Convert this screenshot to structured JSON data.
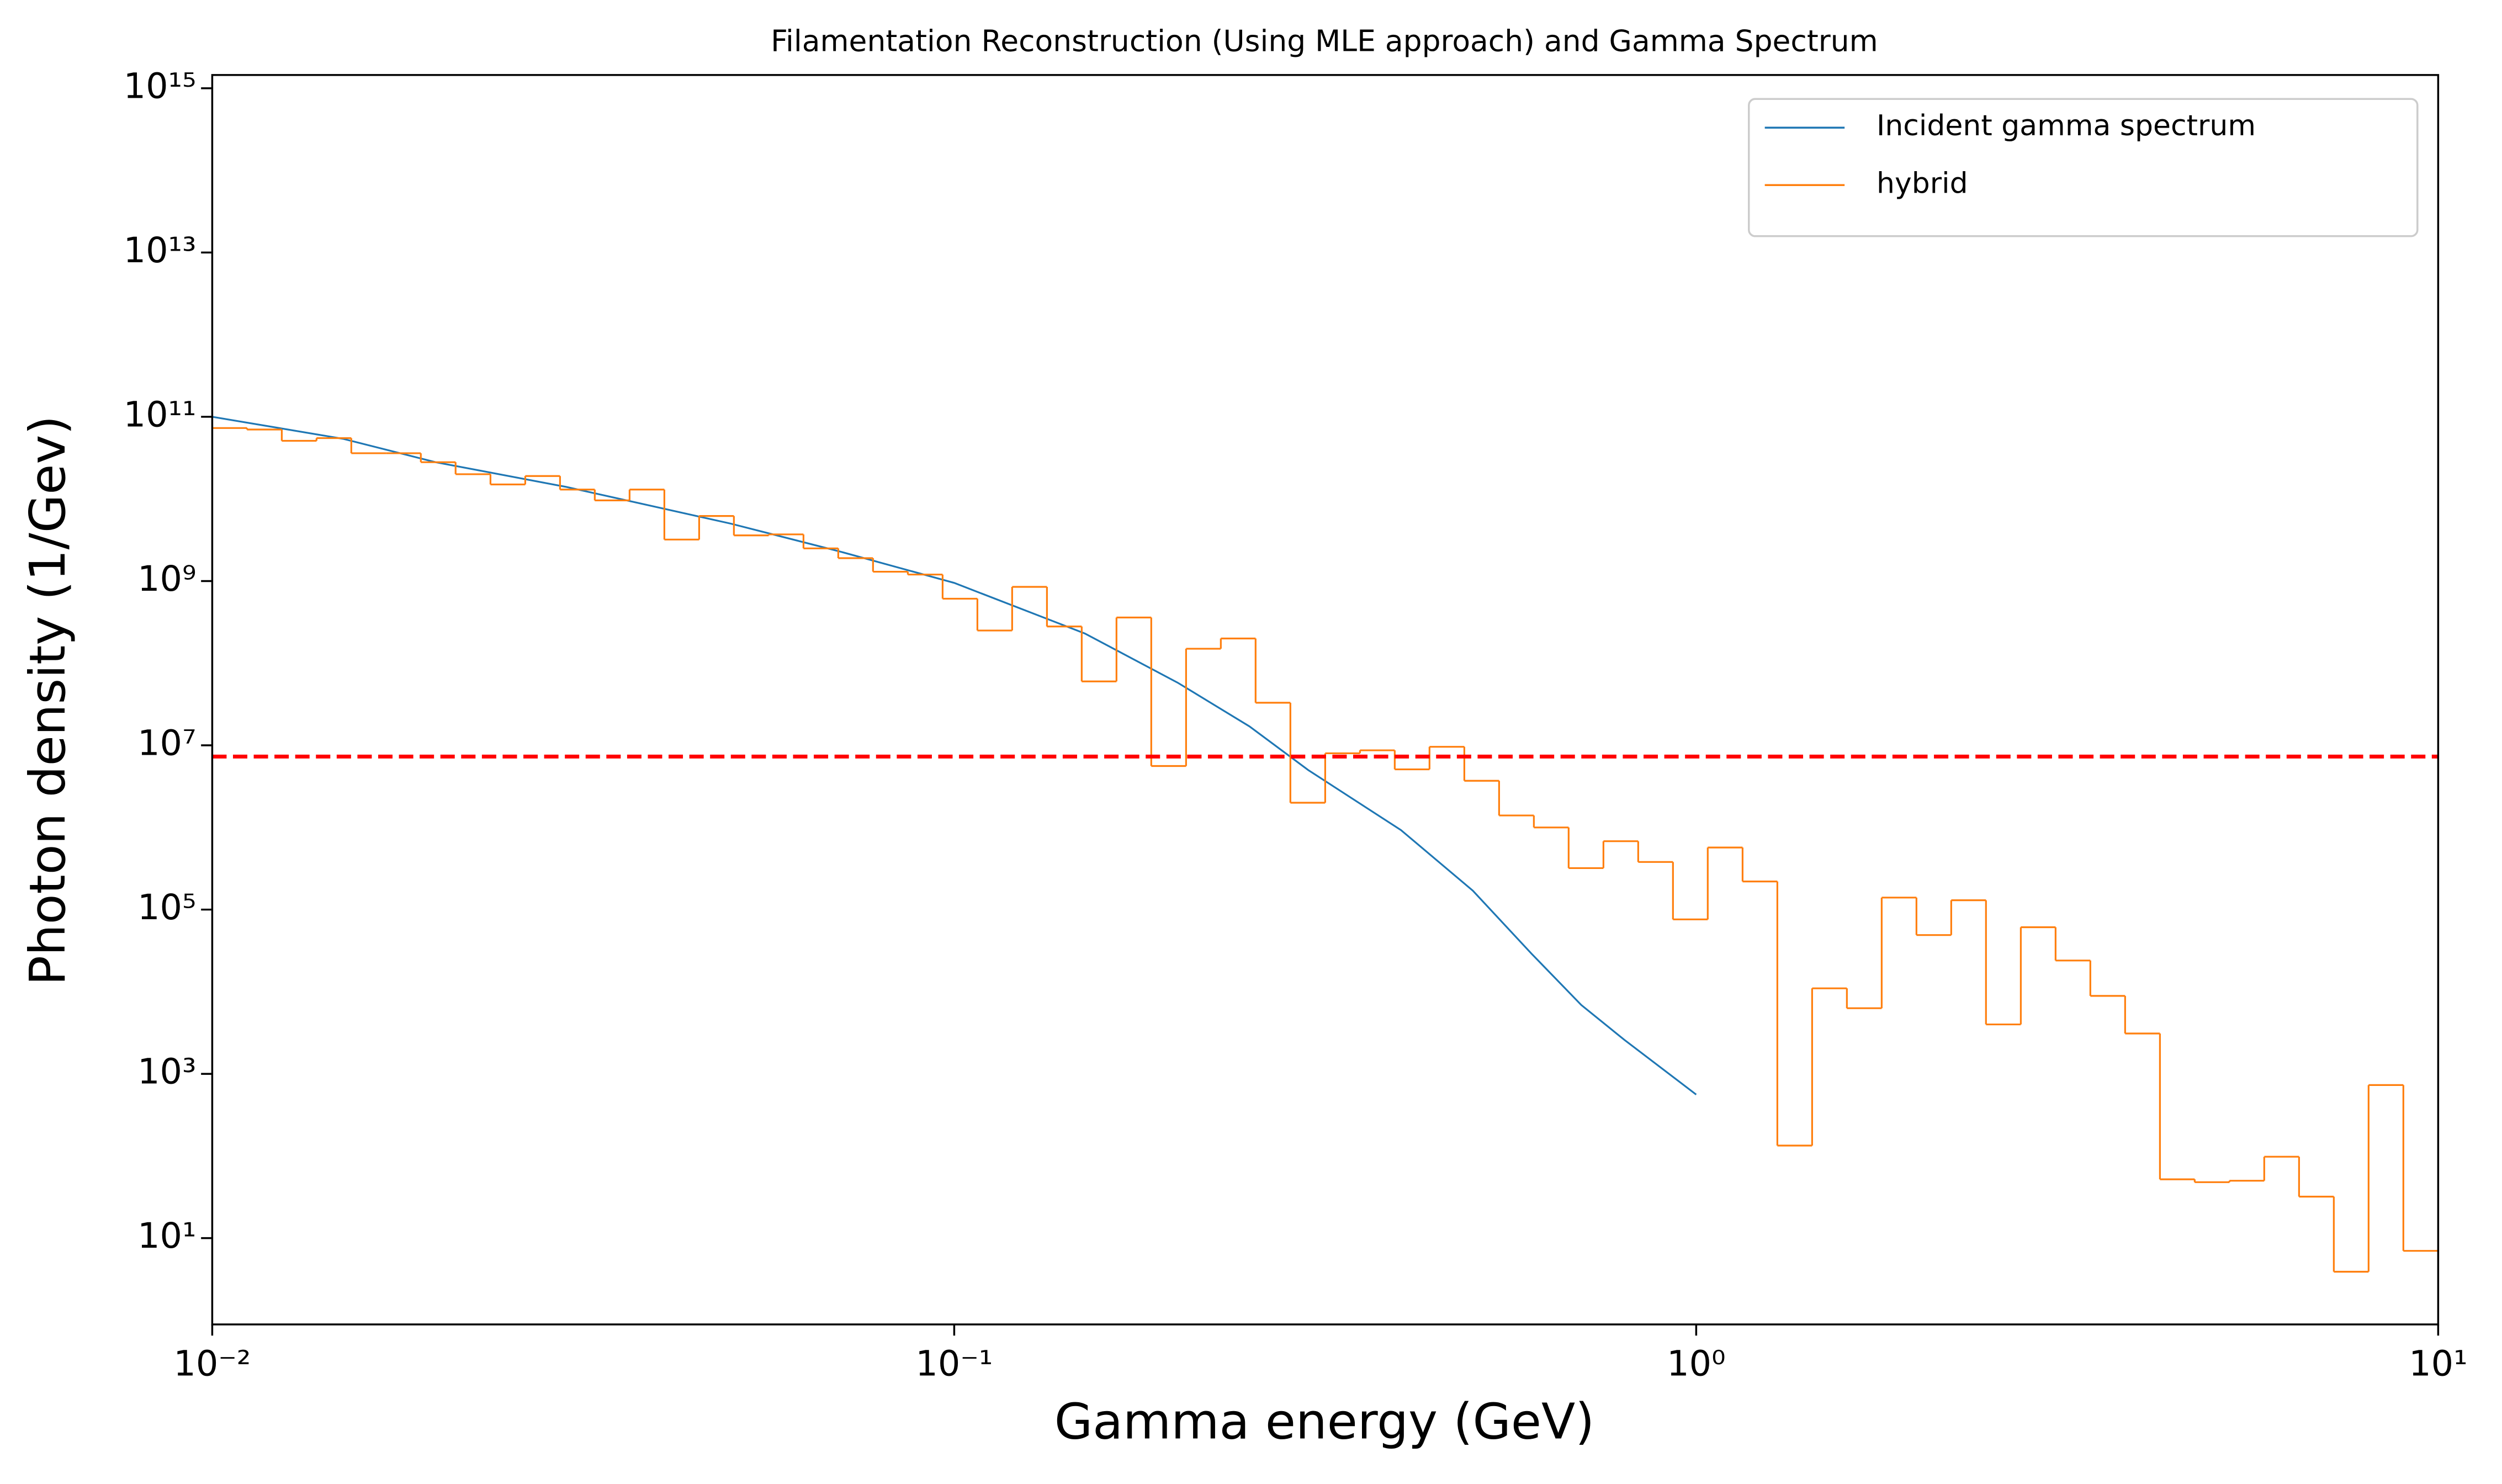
{
  "chart_data": {
    "type": "line",
    "title": "Filamentation Reconstruction (Using MLE approach) and Gamma Spectrum",
    "x_label": "Gamma energy (GeV)",
    "y_label": "Photon density (1/Gev)",
    "log_x": true,
    "log_y": true,
    "legend": "upper right",
    "xlim": [
      0.01,
      10
    ],
    "ylim": [
      0.89,
      1450000000000000.0
    ],
    "xticks": [
      {
        "value": 0.01,
        "label": "10⁻²"
      },
      {
        "value": 0.1,
        "label": "10⁻¹"
      },
      {
        "value": 1,
        "label": "10⁰"
      },
      {
        "value": 10,
        "label": "10¹"
      }
    ],
    "yticks": [
      {
        "value": 10,
        "label": "10¹"
      },
      {
        "value": 1000,
        "label": "10³"
      },
      {
        "value": 100000,
        "label": "10⁵"
      },
      {
        "value": 10000000,
        "label": "10⁷"
      },
      {
        "value": 1000000000,
        "label": "10⁹"
      },
      {
        "value": 100000000000,
        "label": "10¹¹"
      },
      {
        "value": 10000000000000,
        "label": "10¹³"
      },
      {
        "value": 1000000000000000,
        "label": "10¹⁵"
      }
    ],
    "series": [
      {
        "name": "Incident gamma spectrum",
        "color": "#1f77b4",
        "x": [
          0.01,
          0.015,
          0.02,
          0.03,
          0.05,
          0.07,
          0.1,
          0.15,
          0.2,
          0.25,
          0.3,
          0.4,
          0.5,
          0.6,
          0.7,
          0.8,
          1.0
        ],
        "values": [
          100000000000.0,
          54000000000.0,
          28000000000.0,
          14000000000.0,
          5000000000.0,
          2300000000.0,
          950000000.0,
          230000000.0,
          58000000.0,
          17000000.0,
          5000000.0,
          930000.0,
          170000.0,
          29000.0,
          6900.0,
          2600.0,
          560
        ]
      },
      {
        "name": "hybrid",
        "color": "#ff7f0e",
        "type": "histogram",
        "bins": [
          0.01,
          0.011139,
          0.012409,
          0.013822,
          0.015397,
          0.017151,
          0.019105,
          0.021281,
          0.023714,
          0.026416,
          0.029427,
          0.032777,
          0.036517,
          0.040677,
          0.045316,
          0.050474,
          0.056234,
          0.062641,
          0.069778,
          0.077728,
          0.086596,
          0.096462,
          0.10746,
          0.1197,
          0.13335,
          0.14854,
          0.16547,
          0.18432,
          0.20535,
          0.22874,
          0.2548,
          0.28384,
          0.31623,
          0.35226,
          0.39239,
          0.43711,
          0.48697,
          0.54245,
          0.60425,
          0.6731,
          0.74989,
          0.83532,
          0.9305,
          1.0365,
          1.1548,
          1.2864,
          1.433,
          1.5962,
          1.7783,
          1.9809,
          2.2066,
          2.4579,
          2.7384,
          3.0504,
          3.3979,
          3.7851,
          4.217,
          4.6975,
          5.2326,
          5.8288,
          6.4938,
          7.2336,
          8.0577,
          8.9758,
          10
        ],
        "values": [
          73000000000.0,
          70000000000.0,
          51000000000.0,
          55000000000.0,
          36000000000.0,
          36000000000.0,
          28000000000.0,
          20000000000.0,
          15000000000.0,
          19000000000.0,
          13000000000.0,
          9600000000.0,
          13000000000.0,
          3200000000.0,
          6200000000.0,
          3600000000.0,
          3700000000.0,
          2500000000.0,
          1900000000.0,
          1300000000.0,
          1200000000.0,
          610000000.0,
          250000000.0,
          850000000.0,
          280000000.0,
          60000000.0,
          360000000.0,
          5600000.0,
          150000000.0,
          200000000.0,
          33000000.0,
          2000000.0,
          8000000.0,
          8700000.0,
          5100000.0,
          9600000.0,
          3700000.0,
          1400000.0,
          1000000.0,
          320000.0,
          680000.0,
          380000.0,
          76000.0,
          570000.0,
          220000.0,
          134,
          11000.0,
          6300.0,
          140000.0,
          49000.0,
          130000.0,
          4000.0,
          61000.0,
          24000.0,
          8900.0,
          3100.0,
          52,
          48,
          50,
          98,
          32,
          3.9,
          731,
          7
        ]
      }
    ],
    "hline": {
      "value": 7300000,
      "color": "#ff0000"
    }
  }
}
